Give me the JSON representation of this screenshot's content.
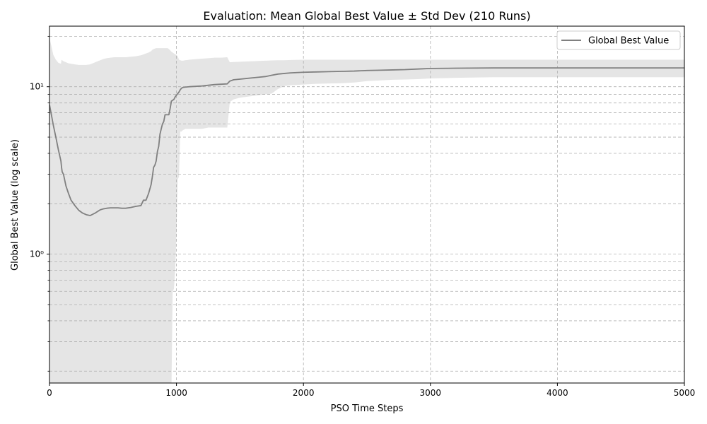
{
  "chart_data": {
    "type": "line",
    "title": "Evaluation: Mean Global Best Value ± Std Dev (210 Runs)",
    "xlabel": "PSO Time Steps",
    "ylabel": "Global Best Value (log scale)",
    "xlim": [
      0,
      5000
    ],
    "ylim": [
      0.17,
      23
    ],
    "yscale": "log",
    "grid": true,
    "legend_position": "top-right",
    "x_ticks": [
      0,
      1000,
      2000,
      3000,
      4000,
      5000
    ],
    "x_tick_labels": [
      "0",
      "1000",
      "2000",
      "3000",
      "4000",
      "5000"
    ],
    "y_major_ticks": [
      1,
      10
    ],
    "y_major_tick_labels": [
      "10⁰",
      "10¹"
    ],
    "y_minor_ticks": [
      0.2,
      0.3,
      0.4,
      0.5,
      0.6,
      0.7,
      0.8,
      0.9,
      2,
      3,
      4,
      5,
      6,
      7,
      8,
      9,
      20
    ],
    "line_color": "#808080",
    "band_color": "#e5e5e5",
    "series": [
      {
        "name": "Global Best Value",
        "x": [
          0,
          15,
          30,
          50,
          70,
          90,
          95,
          100,
          110,
          130,
          150,
          170,
          200,
          230,
          260,
          290,
          320,
          340,
          360,
          380,
          400,
          420,
          450,
          480,
          510,
          540,
          570,
          600,
          640,
          680,
          720,
          740,
          760,
          780,
          800,
          810,
          820,
          830,
          840,
          850,
          860,
          870,
          880,
          890,
          900,
          910,
          920,
          930,
          940,
          950,
          960,
          970,
          980,
          990,
          1000,
          1010,
          1020,
          1030,
          1040,
          1050,
          1070,
          1100,
          1150,
          1200,
          1250,
          1300,
          1350,
          1400,
          1420,
          1450,
          1500,
          1550,
          1600,
          1650,
          1700,
          1750,
          1800,
          1850,
          1900,
          2000,
          2100,
          2200,
          2300,
          2400,
          2500,
          2600,
          2700,
          2800,
          2900,
          3000,
          3200,
          3500,
          4000,
          4500,
          5000
        ],
        "y": [
          7.8,
          6.8,
          5.9,
          5.0,
          4.2,
          3.6,
          3.3,
          3.1,
          3.0,
          2.55,
          2.3,
          2.1,
          1.95,
          1.83,
          1.76,
          1.72,
          1.7,
          1.73,
          1.76,
          1.8,
          1.84,
          1.86,
          1.88,
          1.89,
          1.89,
          1.89,
          1.88,
          1.88,
          1.9,
          1.93,
          1.95,
          2.1,
          2.1,
          2.3,
          2.6,
          2.9,
          3.3,
          3.4,
          3.6,
          4.1,
          4.4,
          5.2,
          5.6,
          6.0,
          6.2,
          6.8,
          6.8,
          6.8,
          6.8,
          7.4,
          8.2,
          8.3,
          8.4,
          8.7,
          8.9,
          9.1,
          9.3,
          9.6,
          9.8,
          9.9,
          9.95,
          10.0,
          10.05,
          10.1,
          10.2,
          10.3,
          10.35,
          10.4,
          10.8,
          11.0,
          11.1,
          11.2,
          11.3,
          11.4,
          11.5,
          11.7,
          11.9,
          12.0,
          12.1,
          12.2,
          12.25,
          12.3,
          12.35,
          12.4,
          12.5,
          12.55,
          12.6,
          12.65,
          12.75,
          12.85,
          12.9,
          12.95,
          12.95,
          12.95,
          12.95
        ],
        "upper": [
          19.5,
          17.5,
          15.5,
          14.5,
          13.9,
          13.7,
          14.5,
          14.4,
          14.2,
          14.0,
          13.8,
          13.7,
          13.6,
          13.5,
          13.5,
          13.5,
          13.6,
          13.8,
          14.0,
          14.2,
          14.4,
          14.6,
          14.8,
          14.9,
          15.0,
          15.0,
          15.0,
          15.0,
          15.1,
          15.2,
          15.4,
          15.6,
          15.8,
          16.0,
          16.3,
          16.6,
          16.8,
          16.9,
          17.0,
          17.0,
          17.0,
          17.0,
          17.0,
          17.0,
          17.0,
          17.0,
          17.0,
          17.0,
          16.8,
          16.5,
          16.2,
          16.0,
          15.8,
          15.6,
          15.5,
          15.2,
          14.5,
          14.4,
          14.3,
          14.3,
          14.4,
          14.5,
          14.6,
          14.7,
          14.8,
          14.9,
          14.9,
          15.0,
          14.0,
          14.05,
          14.1,
          14.15,
          14.2,
          14.25,
          14.3,
          14.35,
          14.4,
          14.4,
          14.45,
          14.5,
          14.5,
          14.5,
          14.5,
          14.5,
          14.5,
          14.5,
          14.5,
          14.5,
          14.5,
          14.5,
          14.5,
          14.5,
          14.5,
          14.5,
          14.5
        ],
        "lower": [
          0.15,
          0.15,
          0.15,
          0.15,
          0.15,
          0.15,
          0.15,
          0.15,
          0.15,
          0.15,
          0.15,
          0.15,
          0.15,
          0.15,
          0.15,
          0.15,
          0.15,
          0.15,
          0.15,
          0.15,
          0.15,
          0.15,
          0.15,
          0.15,
          0.15,
          0.15,
          0.15,
          0.15,
          0.15,
          0.15,
          0.15,
          0.15,
          0.15,
          0.15,
          0.15,
          0.15,
          0.15,
          0.15,
          0.15,
          0.15,
          0.15,
          0.15,
          0.15,
          0.15,
          0.15,
          0.15,
          0.15,
          0.15,
          0.15,
          0.15,
          0.15,
          0.6,
          0.62,
          0.8,
          1.3,
          2.8,
          2.9,
          5.4,
          5.4,
          5.5,
          5.6,
          5.6,
          5.6,
          5.6,
          5.7,
          5.7,
          5.7,
          5.7,
          8.1,
          8.4,
          8.6,
          8.7,
          8.8,
          8.9,
          9.0,
          9.1,
          9.7,
          10.1,
          10.2,
          10.3,
          10.4,
          10.45,
          10.5,
          10.6,
          10.8,
          10.9,
          11.0,
          11.05,
          11.1,
          11.2,
          11.3,
          11.4,
          11.4,
          11.4,
          11.4
        ]
      }
    ]
  }
}
